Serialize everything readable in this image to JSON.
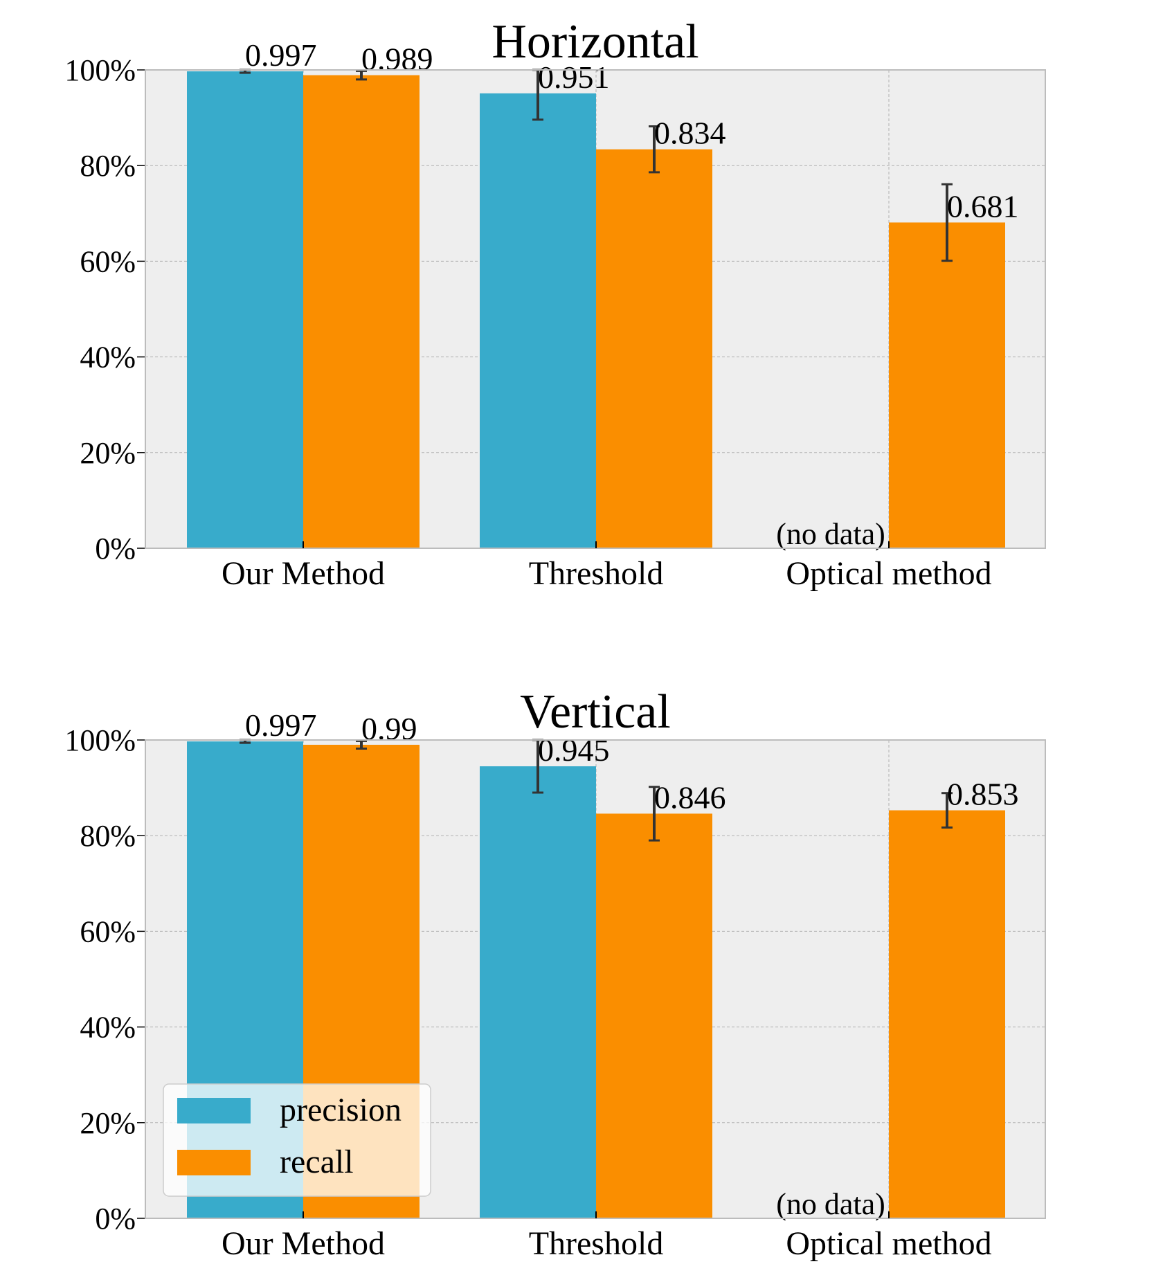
{
  "colors": {
    "precision": "#38abcb",
    "recall": "#fa8e00",
    "plot_background": "#eeeeee",
    "grid": "#b0b0b0",
    "error_bar": "#333333",
    "axes_edge": "#bcbcbc"
  },
  "chart_data": [
    {
      "type": "bar",
      "title": "Horizontal",
      "categories": [
        "Our Method",
        "Threshold",
        "Optical method"
      ],
      "series": [
        {
          "name": "precision",
          "values": [
            0.997,
            0.951,
            null
          ],
          "error": [
            0.003,
            0.055,
            null
          ]
        },
        {
          "name": "recall",
          "values": [
            0.989,
            0.834,
            0.681
          ],
          "error": [
            0.009,
            0.048,
            0.08
          ]
        }
      ],
      "value_labels": [
        [
          "0.997",
          "0.951",
          null
        ],
        [
          "0.989",
          "0.834",
          "0.681"
        ]
      ],
      "no_data_label": "(no data)",
      "ylim": [
        0,
        1
      ],
      "yticks": [
        "0%",
        "20%",
        "40%",
        "60%",
        "80%",
        "100%"
      ],
      "grid": true,
      "legend": null
    },
    {
      "type": "bar",
      "title": "Vertical",
      "categories": [
        "Our Method",
        "Threshold",
        "Optical method"
      ],
      "series": [
        {
          "name": "precision",
          "values": [
            0.997,
            0.945,
            null
          ],
          "error": [
            0.003,
            0.055,
            null
          ]
        },
        {
          "name": "recall",
          "values": [
            0.99,
            0.846,
            0.853
          ],
          "error": [
            0.008,
            0.056,
            0.036
          ]
        }
      ],
      "value_labels": [
        [
          "0.997",
          "0.945",
          null
        ],
        [
          "0.99",
          "0.846",
          "0.853"
        ]
      ],
      "no_data_label": "(no data)",
      "ylim": [
        0,
        1
      ],
      "yticks": [
        "0%",
        "20%",
        "40%",
        "60%",
        "80%",
        "100%"
      ],
      "grid": true,
      "legend": {
        "placement": "lower left",
        "entries": [
          "precision",
          "recall"
        ]
      }
    }
  ]
}
